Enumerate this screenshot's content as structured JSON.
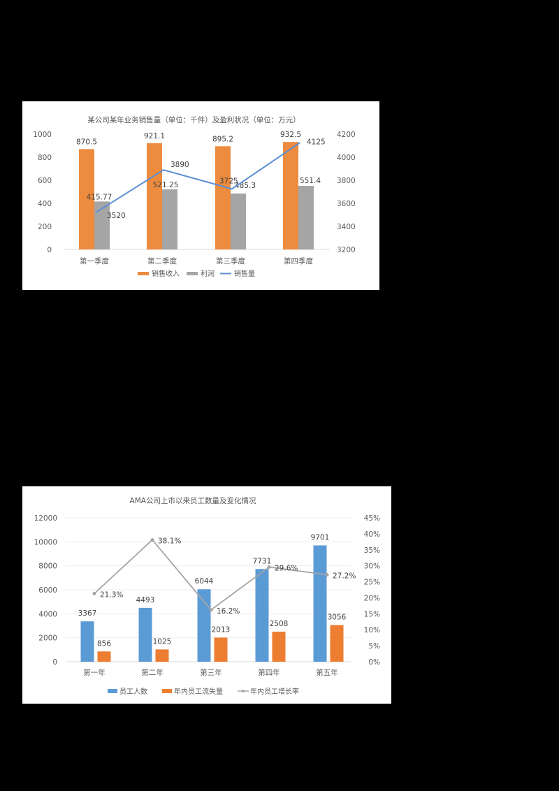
{
  "chart_data": [
    {
      "type": "bar",
      "title": "某公司某年业务销售量（单位：千件）及盈利状况（单位：万元）",
      "categories": [
        "第一季度",
        "第二季度",
        "第三季度",
        "第四季度"
      ],
      "series": [
        {
          "name": "销售收入",
          "type": "bar",
          "axis": "left",
          "color": "#ED8B3E",
          "values": [
            870.5,
            921.1,
            895.2,
            932.5
          ]
        },
        {
          "name": "利润",
          "type": "bar",
          "axis": "left",
          "color": "#A5A5A5",
          "values": [
            415.77,
            521.25,
            485.3,
            551.4
          ]
        },
        {
          "name": "销售量",
          "type": "line",
          "axis": "right",
          "color": "#5B8FD4",
          "values": [
            3520,
            3890,
            3725,
            4125
          ]
        }
      ],
      "ylim": [
        0,
        1000
      ],
      "yticks": [
        "0",
        "200",
        "400",
        "600",
        "800",
        "1000"
      ],
      "y2lim": [
        3200,
        4200
      ],
      "y2ticks": [
        "3200",
        "3400",
        "3600",
        "3800",
        "4000",
        "4200"
      ],
      "xlabel": "",
      "ylabel": "",
      "y2label": "",
      "grid": false,
      "legend_position": "bottom",
      "data_labels": {
        "销售收入": [
          "870.5",
          "921.1",
          "895.2",
          "932.5"
        ],
        "利润": [
          "415.77",
          "521.25",
          "485.3",
          "551.4"
        ],
        "销售量": [
          "3520",
          "3890",
          "3725",
          "4125"
        ]
      }
    },
    {
      "type": "bar",
      "title": "AMA公司上市以来员工数量及变化情况",
      "categories": [
        "第一年",
        "第二年",
        "第三年",
        "第四年",
        "第五年"
      ],
      "series": [
        {
          "name": "员工人数",
          "type": "bar",
          "axis": "left",
          "color": "#5B9BD5",
          "values": [
            3367,
            4493,
            6044,
            7731,
            9701
          ]
        },
        {
          "name": "年内员工流失量",
          "type": "bar",
          "axis": "left",
          "color": "#ED7D31",
          "values": [
            856,
            1025,
            2013,
            2508,
            3056
          ]
        },
        {
          "name": "年内员工增长率",
          "type": "line",
          "axis": "right",
          "color": "#A5A5A5",
          "values": [
            21.3,
            38.1,
            16.2,
            29.6,
            27.2
          ]
        }
      ],
      "ylim": [
        0,
        12000
      ],
      "yticks": [
        "0",
        "2000",
        "4000",
        "6000",
        "8000",
        "10000",
        "12000"
      ],
      "y2lim": [
        0,
        45
      ],
      "y2ticks": [
        "0%",
        "5%",
        "10%",
        "15%",
        "20%",
        "25%",
        "30%",
        "35%",
        "40%",
        "45%"
      ],
      "xlabel": "",
      "ylabel": "",
      "y2label": "",
      "grid": true,
      "legend_position": "bottom",
      "data_labels": {
        "员工人数": [
          "3367",
          "4493",
          "6044",
          "7731",
          "9701"
        ],
        "年内员工流失量": [
          "856",
          "1025",
          "2013",
          "2508",
          "3056"
        ],
        "年内员工增长率": [
          "21.3%",
          "38.1%",
          "16.2%",
          "29.6%",
          "27.2%"
        ]
      }
    }
  ]
}
